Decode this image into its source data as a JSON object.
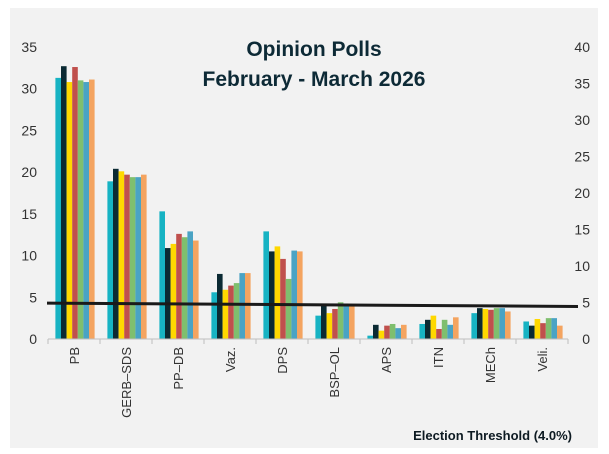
{
  "chart_data": {
    "type": "bar",
    "title": "Opinion Polls",
    "subtitle": "February - March 2026",
    "footnote": "Election Threshold (4.0%)",
    "categories": [
      "PB",
      "GERB–SDS",
      "PP–DB",
      "Vaz.",
      "DPS",
      "BSP–OL",
      "APS",
      "ITN",
      "MECh",
      "Veli."
    ],
    "series": [
      {
        "color": "#17b3c3",
        "values": [
          31.3,
          18.9,
          15.3,
          5.6,
          12.9,
          2.8,
          0.4,
          1.8,
          3.1,
          2.1
        ]
      },
      {
        "color": "#0b2a33",
        "values": [
          32.7,
          20.4,
          10.9,
          7.8,
          10.5,
          4.0,
          1.7,
          2.3,
          3.7,
          1.6
        ]
      },
      {
        "color": "#ffd800",
        "values": [
          30.8,
          20.1,
          11.4,
          5.9,
          11.1,
          3.1,
          1.0,
          2.8,
          3.6,
          2.4
        ]
      },
      {
        "color": "#c0504d",
        "values": [
          32.6,
          19.7,
          12.6,
          6.4,
          9.6,
          3.6,
          1.6,
          1.2,
          3.5,
          1.9
        ]
      },
      {
        "color": "#7fbf6e",
        "values": [
          31.0,
          19.4,
          12.2,
          6.7,
          7.2,
          4.4,
          1.8,
          2.3,
          3.7,
          2.5
        ]
      },
      {
        "color": "#4aa3c4",
        "values": [
          30.8,
          19.4,
          12.9,
          7.9,
          10.6,
          4.2,
          1.3,
          1.7,
          3.7,
          2.5
        ]
      },
      {
        "color": "#f4a460",
        "values": [
          31.1,
          19.7,
          11.8,
          7.9,
          10.5,
          3.9,
          1.7,
          2.6,
          3.3,
          1.6
        ]
      }
    ],
    "ylim": [
      0,
      35
    ],
    "yticks": [
      0,
      5,
      10,
      15,
      20,
      25,
      30,
      35
    ],
    "y2lim": [
      0,
      40
    ],
    "y2ticks": [
      0,
      5,
      10,
      15,
      20,
      25,
      30,
      35,
      40
    ],
    "threshold_line": {
      "left_value": 4.3,
      "right_value": 3.9
    },
    "grid": false,
    "legend": "none"
  }
}
